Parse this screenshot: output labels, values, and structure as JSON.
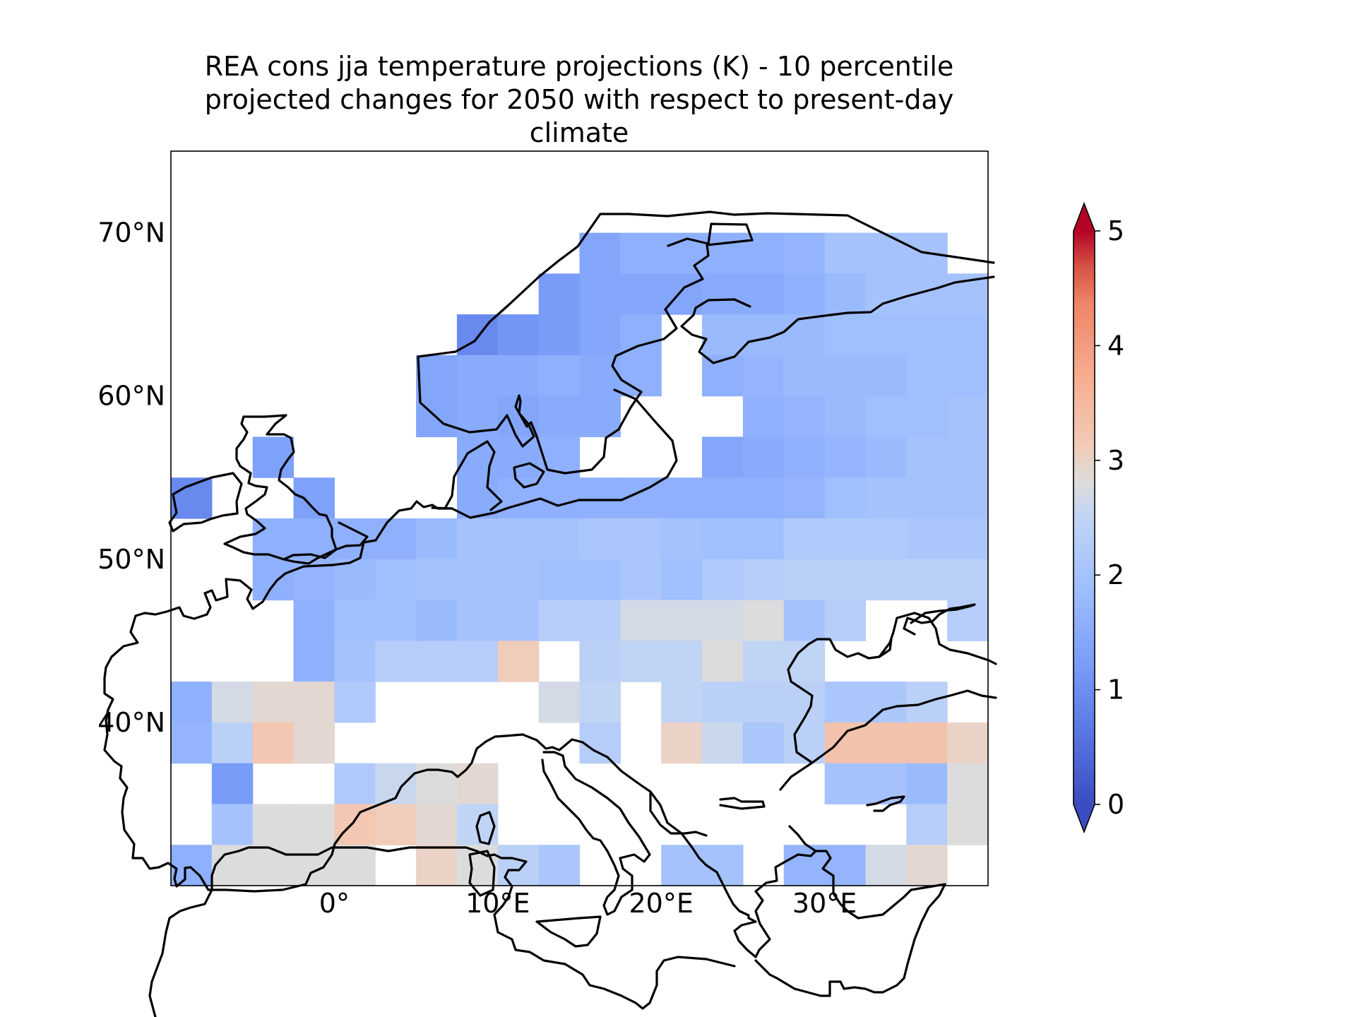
{
  "title_lines": [
    "REA cons jja temperature projections (K) - 10 percentile",
    "projected changes for 2050 with respect to present-day",
    "climate"
  ],
  "map": {
    "lon_range": [
      -10,
      40
    ],
    "lat_range": [
      30,
      75
    ],
    "lon_ticks": [
      {
        "value": 0,
        "label": "0°"
      },
      {
        "value": 10,
        "label": "10°E"
      },
      {
        "value": 20,
        "label": "20°E"
      },
      {
        "value": 30,
        "label": "30°E"
      }
    ],
    "lat_ticks": [
      {
        "value": 40,
        "label": "40°N"
      },
      {
        "value": 50,
        "label": "50°N"
      },
      {
        "value": 60,
        "label": "60°N"
      },
      {
        "value": 70,
        "label": "70°N"
      }
    ],
    "coastline_color": "#000000",
    "grid_columns": 20,
    "grid_rows": 18,
    "column_lons_start": -10,
    "row_lats_start": 75,
    "cell_deg": 2.5
  },
  "colorbar": {
    "colormap": "coolwarm",
    "vmin": 0,
    "vmax": 5,
    "extend": "both",
    "ticks": [
      {
        "value": 0,
        "label": "0"
      },
      {
        "value": 1,
        "label": "1"
      },
      {
        "value": 2,
        "label": "2"
      },
      {
        "value": 3,
        "label": "3"
      },
      {
        "value": 4,
        "label": "4"
      },
      {
        "value": 5,
        "label": "5"
      }
    ]
  },
  "chart_data": {
    "type": "heatmap",
    "title": "REA cons jja temperature projections (K) - 10 percentile projected changes for 2050 with respect to present-day climate",
    "xlim": [
      -10,
      40
    ],
    "ylim": [
      30,
      75
    ],
    "colorbar_range": [
      0,
      5
    ],
    "colorbar_ticks": [
      0,
      1,
      2,
      3,
      4,
      5
    ],
    "grid": {
      "lon_start": -10,
      "lat_top": 75,
      "step": 2.5,
      "values": [
        [
          null,
          null,
          null,
          null,
          null,
          null,
          null,
          null,
          null,
          null,
          null,
          null,
          null,
          null,
          null,
          null,
          null,
          null,
          null,
          null
        ],
        [
          null,
          null,
          null,
          null,
          null,
          null,
          null,
          null,
          null,
          null,
          null,
          null,
          null,
          null,
          null,
          null,
          null,
          null,
          null,
          null
        ],
        [
          null,
          null,
          null,
          null,
          null,
          null,
          null,
          null,
          null,
          null,
          1.4,
          1.6,
          1.6,
          1.6,
          1.6,
          1.7,
          2.0,
          2.0,
          2.0,
          null
        ],
        [
          null,
          null,
          null,
          null,
          null,
          null,
          null,
          null,
          null,
          1.2,
          1.4,
          1.4,
          1.4,
          1.5,
          1.5,
          1.6,
          1.8,
          2.0,
          2.0,
          2.0
        ],
        [
          null,
          null,
          null,
          null,
          null,
          null,
          null,
          0.9,
          1.1,
          1.2,
          1.4,
          1.6,
          null,
          1.8,
          1.8,
          1.8,
          1.9,
          1.9,
          1.9,
          1.9
        ],
        [
          null,
          null,
          null,
          null,
          null,
          null,
          1.4,
          1.5,
          1.5,
          1.6,
          1.5,
          1.6,
          null,
          1.6,
          1.7,
          1.8,
          1.8,
          1.8,
          1.9,
          1.9
        ],
        [
          null,
          null,
          null,
          null,
          null,
          null,
          1.4,
          1.5,
          1.4,
          1.5,
          1.5,
          null,
          null,
          null,
          1.6,
          1.7,
          1.8,
          1.9,
          1.9,
          2.0
        ],
        [
          null,
          null,
          1.3,
          null,
          null,
          null,
          null,
          1.5,
          1.5,
          1.6,
          null,
          null,
          null,
          1.4,
          1.5,
          1.6,
          1.7,
          1.8,
          2.0,
          2.0
        ],
        [
          0.9,
          null,
          null,
          1.3,
          null,
          null,
          null,
          1.5,
          1.6,
          1.6,
          1.6,
          1.6,
          1.6,
          1.6,
          1.6,
          1.7,
          1.9,
          2.0,
          2.0,
          2.0
        ],
        [
          null,
          null,
          1.6,
          1.6,
          1.6,
          1.6,
          1.8,
          2.0,
          2.0,
          2.0,
          2.1,
          2.1,
          2.0,
          1.9,
          1.9,
          2.2,
          2.2,
          2.2,
          2.1,
          2.1
        ],
        [
          null,
          null,
          1.6,
          1.7,
          1.8,
          1.9,
          2.0,
          2.0,
          2.0,
          1.9,
          1.9,
          2.1,
          1.9,
          2.2,
          2.3,
          2.4,
          2.4,
          2.4,
          2.4,
          2.4
        ],
        [
          null,
          null,
          null,
          1.6,
          1.9,
          1.9,
          1.8,
          2.0,
          2.0,
          2.3,
          2.3,
          2.7,
          2.7,
          2.7,
          2.8,
          2.0,
          2.3,
          null,
          null,
          2.3
        ],
        [
          null,
          null,
          null,
          1.6,
          2.0,
          2.3,
          2.3,
          2.3,
          3.1,
          null,
          2.4,
          2.5,
          2.5,
          2.8,
          2.5,
          2.5,
          null,
          null,
          null,
          null
        ],
        [
          1.6,
          2.7,
          2.9,
          2.9,
          2.2,
          null,
          null,
          null,
          null,
          2.7,
          2.5,
          null,
          2.5,
          2.4,
          2.4,
          2.4,
          2.1,
          2.1,
          2.4,
          null
        ],
        [
          1.7,
          2.4,
          3.2,
          2.9,
          null,
          null,
          null,
          null,
          null,
          null,
          2.3,
          null,
          3.0,
          2.6,
          2.1,
          2.4,
          3.3,
          3.3,
          3.3,
          3.0
        ],
        [
          null,
          1.2,
          null,
          null,
          2.2,
          2.6,
          2.8,
          2.9,
          null,
          null,
          null,
          null,
          null,
          null,
          null,
          null,
          2.0,
          2.0,
          1.8,
          2.8
        ],
        [
          null,
          2.0,
          2.8,
          2.8,
          3.2,
          3.1,
          2.9,
          2.5,
          null,
          null,
          null,
          null,
          null,
          null,
          null,
          null,
          null,
          null,
          2.3,
          2.8
        ],
        [
          1.6,
          2.8,
          2.8,
          2.8,
          2.8,
          null,
          3.0,
          2.8,
          2.4,
          2.1,
          null,
          null,
          2.0,
          2.0,
          null,
          1.7,
          1.7,
          2.7,
          2.9,
          null
        ]
      ]
    }
  }
}
